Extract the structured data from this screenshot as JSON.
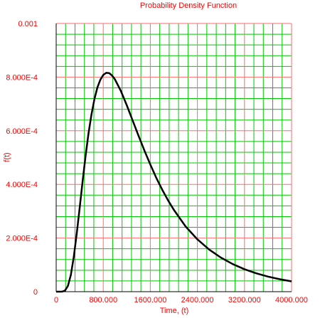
{
  "chart_data": {
    "type": "line",
    "title": "Probability Density Function",
    "xlabel": "Time, (t)",
    "ylabel": "f(t)",
    "xlim": [
      0,
      4000
    ],
    "ylim": [
      0,
      0.001
    ],
    "x_ticks": [
      0,
      800,
      1600,
      2400,
      3200,
      4000
    ],
    "x_tick_labels": [
      "0",
      "800.000",
      "1600.000",
      "2400.000",
      "3200.000",
      "4000.000"
    ],
    "y_ticks": [
      0,
      0.0002,
      0.0004,
      0.0006,
      0.0008,
      0.001
    ],
    "y_tick_labels": [
      "0",
      "2.000E-4",
      "4.000E-4",
      "6.000E-4",
      "8.000E-4",
      "0.001"
    ],
    "grid": true,
    "minor_divisions_x": 5,
    "minor_divisions_y": 5,
    "colors": {
      "text": "#ff0000",
      "major_grid": "#ff6b6b",
      "minor_grid": "#00c800",
      "axes": "#000000",
      "curve": "#000000"
    },
    "series": [
      {
        "x": [
          0,
          100,
          150,
          200,
          250,
          300,
          350,
          400,
          450,
          500,
          550,
          600,
          650,
          700,
          750,
          800,
          850,
          900,
          950,
          1000,
          1100,
          1200,
          1300,
          1400,
          1500,
          1600,
          1700,
          1800,
          1900,
          2000,
          2200,
          2400,
          2600,
          2800,
          3000,
          3200,
          3400,
          3600,
          3800,
          4000
        ],
        "y": [
          0,
          3e-07,
          4.2e-06,
          2.17e-05,
          6.33e-05,
          0.000131,
          0.000218,
          0.000314,
          0.000413,
          0.000507,
          0.000591,
          0.000661,
          0.000718,
          0.000761,
          0.00079,
          0.000808,
          0.000816,
          0.000815,
          0.000806,
          0.000791,
          0.000748,
          0.000695,
          0.000638,
          0.000581,
          0.000526,
          0.000474,
          0.000425,
          0.000381,
          0.000341,
          0.000305,
          0.000243,
          0.000195,
          0.000157,
          0.000127,
          0.000103,
          8.37e-05,
          6.85e-05,
          5.62e-05,
          4.64e-05,
          3.84e-05
        ]
      }
    ]
  }
}
